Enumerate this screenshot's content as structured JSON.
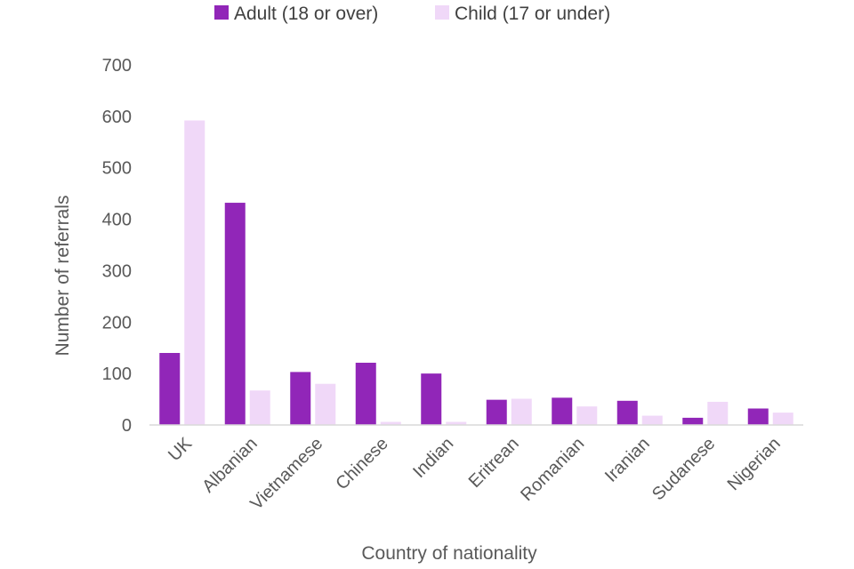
{
  "chart_data": {
    "type": "bar",
    "title": "",
    "xlabel": "Country of nationality",
    "ylabel": "Number of referrals",
    "ylim": [
      0,
      700
    ],
    "yticks": [
      0,
      100,
      200,
      300,
      400,
      500,
      600,
      700
    ],
    "grid": false,
    "legend_position": "top",
    "categories": [
      "UK",
      "Albanian",
      "Vietnamese",
      "Chinese",
      "Indian",
      "Eritrean",
      "Romanian",
      "Iranian",
      "Sudanese",
      "Nigerian"
    ],
    "series": [
      {
        "name": "Adult (18 or over)",
        "color": "#9126B8",
        "values": [
          140,
          432,
          103,
          121,
          100,
          49,
          53,
          47,
          14,
          32
        ]
      },
      {
        "name": "Child (17 or under)",
        "color": "#F0D8F8",
        "values": [
          592,
          67,
          80,
          6,
          6,
          51,
          36,
          18,
          45,
          24
        ]
      }
    ]
  }
}
